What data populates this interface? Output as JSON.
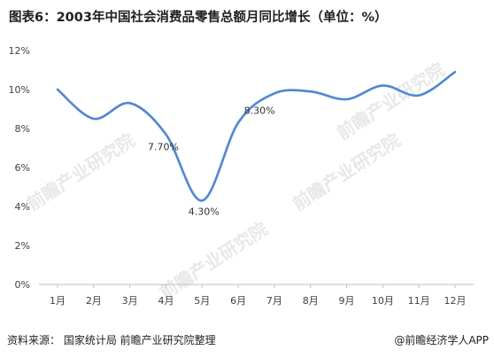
{
  "title": "图表6：2003年中国社会消费品零售总额月同比增长（单位：%）",
  "footer": {
    "source": "资料来源：  国家统计局  前瞻产业研究院整理",
    "brand": "@前瞻经济学人APP"
  },
  "watermark": "前瞻产业研究院",
  "colors": {
    "line": "#4a86e0",
    "axis": "#bfbfbf",
    "text": "#404040"
  },
  "chart_data": {
    "type": "line",
    "title": "图表6：2003年中国社会消费品零售总额月同比增长（单位：%）",
    "categories": [
      "1月",
      "2月",
      "3月",
      "4月",
      "5月",
      "6月",
      "7月",
      "8月",
      "9月",
      "10月",
      "11月",
      "12月"
    ],
    "yticks": [
      "0%",
      "2%",
      "4%",
      "6%",
      "8%",
      "10%",
      "12%"
    ],
    "ylim": [
      0,
      12
    ],
    "grid": false,
    "series": [
      {
        "values": [
          10.0,
          8.5,
          9.3,
          7.7,
          4.3,
          8.3,
          9.8,
          9.9,
          9.5,
          10.2,
          9.7,
          10.9
        ]
      }
    ],
    "data_labels": [
      {
        "index": 3,
        "text": "7.70%"
      },
      {
        "index": 4,
        "text": "4.30%"
      },
      {
        "index": 5,
        "text": "8.30%"
      }
    ]
  }
}
